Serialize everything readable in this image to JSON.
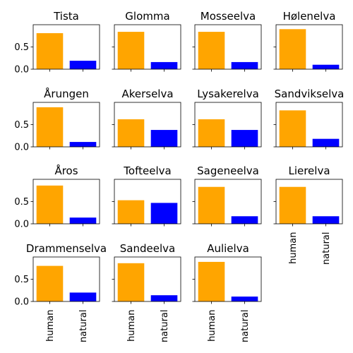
{
  "chart_data": {
    "type": "bar",
    "layout": "small-multiples 4x4 grid",
    "categories": [
      "human",
      "natural"
    ],
    "colors": {
      "human": "#ffa500",
      "natural": "#0000ff"
    },
    "ylim": [
      0,
      1.0
    ],
    "yticks": [
      "0.0",
      "0.5"
    ],
    "shared_y": true,
    "panels": [
      {
        "title": "Tista",
        "values": [
          0.81,
          0.19
        ]
      },
      {
        "title": "Glomma",
        "values": [
          0.84,
          0.16
        ]
      },
      {
        "title": "Mosseelva",
        "values": [
          0.84,
          0.16
        ]
      },
      {
        "title": "Hølenelva",
        "values": [
          0.9,
          0.1
        ]
      },
      {
        "title": "Årungen",
        "values": [
          0.89,
          0.11
        ]
      },
      {
        "title": "Akerselva",
        "values": [
          0.62,
          0.38
        ]
      },
      {
        "title": "Lysakerelva",
        "values": [
          0.62,
          0.38
        ]
      },
      {
        "title": "Sandvikselva",
        "values": [
          0.82,
          0.18
        ]
      },
      {
        "title": "Åros",
        "values": [
          0.86,
          0.14
        ]
      },
      {
        "title": "Tofteelva",
        "values": [
          0.53,
          0.47
        ]
      },
      {
        "title": "Sageneelva",
        "values": [
          0.83,
          0.17
        ]
      },
      {
        "title": "Lierelva",
        "values": [
          0.83,
          0.17
        ]
      },
      {
        "title": "Drammenselva",
        "values": [
          0.8,
          0.2
        ]
      },
      {
        "title": "Sandeelva",
        "values": [
          0.86,
          0.14
        ]
      },
      {
        "title": "Aulielva",
        "values": [
          0.89,
          0.11
        ]
      }
    ]
  }
}
